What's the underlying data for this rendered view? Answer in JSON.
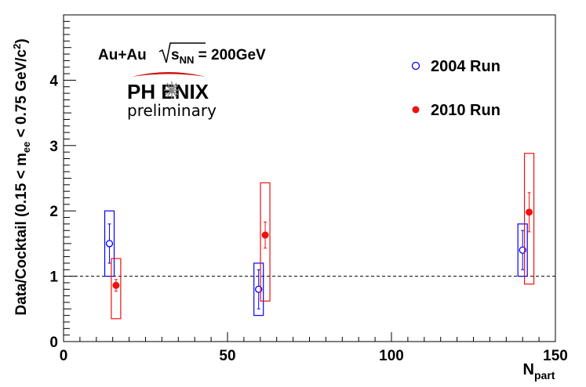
{
  "chart_data": {
    "type": "scatter",
    "xlabel": "N",
    "xlabel_sub": "part",
    "ylabel": "Data/Cocktail (0.15 < m",
    "ylabel_sub": "ee",
    "ylabel_tail": " < 0.75 GeV/c",
    "ylabel_sup": "2",
    "ylabel_close": ")",
    "xlim": [
      0,
      150
    ],
    "ylim": [
      0,
      5
    ],
    "x_ticks": [
      0,
      50,
      100,
      150
    ],
    "y_ticks": [
      0,
      1,
      2,
      3,
      4
    ],
    "reference_line": 1,
    "annotation": {
      "system": "Au+Au",
      "sqrt_s": "s",
      "sqrt_s_sub": "NN",
      "energy": " = 200GeV",
      "logo": "PH ENIX",
      "logo_subtitle": "preliminary"
    },
    "series": [
      {
        "name": "2004 Run",
        "color": "#0000ff",
        "marker": "open-circle",
        "points": [
          {
            "x": 14,
            "y": 1.5,
            "stat_lo": 1.2,
            "stat_hi": 1.8,
            "sys_lo": 1.0,
            "sys_hi": 2.0
          },
          {
            "x": 59.5,
            "y": 0.8,
            "stat_lo": 0.5,
            "stat_hi": 1.1,
            "sys_lo": 0.4,
            "sys_hi": 1.2
          },
          {
            "x": 140,
            "y": 1.4,
            "stat_lo": 1.1,
            "stat_hi": 1.7,
            "sys_lo": 1.0,
            "sys_hi": 1.8
          }
        ]
      },
      {
        "name": "2010 Run",
        "color": "#ee1111",
        "marker": "filled-circle",
        "points": [
          {
            "x": 16,
            "y": 0.86,
            "stat_lo": 0.77,
            "stat_hi": 0.95,
            "sys_lo": 0.35,
            "sys_hi": 1.27
          },
          {
            "x": 61.5,
            "y": 1.63,
            "stat_lo": 1.43,
            "stat_hi": 1.83,
            "sys_lo": 0.62,
            "sys_hi": 2.43
          },
          {
            "x": 142,
            "y": 1.98,
            "stat_lo": 1.68,
            "stat_hi": 2.28,
            "sys_lo": 0.88,
            "sys_hi": 2.88
          }
        ]
      }
    ]
  }
}
